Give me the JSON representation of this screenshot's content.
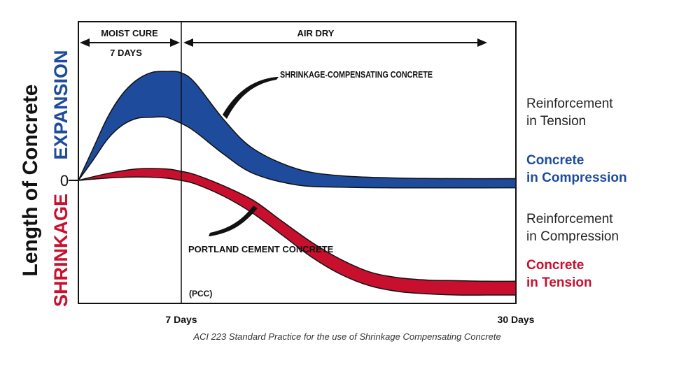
{
  "chart_data": {
    "type": "area",
    "title": "",
    "xlabel": "",
    "ylabel": "Length of Concrete",
    "y_positive_label": "EXPANSION",
    "y_negative_label": "SHRINKAGE",
    "y_zero_label": "0",
    "x_ticks": [
      "7 Days",
      "30 Days"
    ],
    "phases": [
      {
        "label": "MOIST CURE",
        "sublabel": "7 DAYS"
      },
      {
        "label": "AIR DRY"
      }
    ],
    "series": [
      {
        "name": "SHRINKAGE-COMPENSATING CONCRETE",
        "color": "#1e4b9b",
        "x_days": [
          0,
          1,
          2,
          3,
          4,
          5,
          6,
          7,
          8,
          10,
          12,
          15,
          18,
          22,
          26,
          30
        ],
        "upper": [
          0.0,
          0.55,
          1.1,
          1.5,
          1.75,
          1.88,
          1.9,
          1.88,
          1.7,
          1.05,
          0.55,
          0.2,
          0.08,
          0.04,
          0.03,
          0.03
        ],
        "lower": [
          0.0,
          0.35,
          0.72,
          0.96,
          1.08,
          1.1,
          1.1,
          1.0,
          0.85,
          0.45,
          0.12,
          -0.08,
          -0.12,
          -0.13,
          -0.13,
          -0.13
        ]
      },
      {
        "name": "PORTLAND CEMENT CONCRETE",
        "sublabel": "(PCC)",
        "color": "#c8102e",
        "x_days": [
          0,
          2,
          4,
          6,
          7,
          8,
          10,
          12,
          14,
          16,
          18,
          20,
          22,
          24,
          26,
          28,
          30
        ],
        "upper": [
          0.0,
          0.12,
          0.2,
          0.2,
          0.16,
          0.1,
          -0.1,
          -0.35,
          -0.72,
          -1.08,
          -1.38,
          -1.6,
          -1.7,
          -1.74,
          -1.75,
          -1.76,
          -1.76
        ],
        "lower": [
          0.0,
          0.04,
          0.06,
          0.04,
          0.0,
          -0.06,
          -0.28,
          -0.58,
          -0.96,
          -1.34,
          -1.64,
          -1.84,
          -1.94,
          -1.98,
          -2.0,
          -2.0,
          -2.0
        ]
      }
    ],
    "xlim": [
      0,
      30
    ],
    "ylim": [
      -2.0,
      2.2
    ],
    "right_labels": [
      {
        "text1": "Reinforcement",
        "text2": "in Tension",
        "color": "#222222"
      },
      {
        "text1": "Concrete",
        "text2": "in Compression",
        "color": "#1e4b9b"
      },
      {
        "text1": "Reinforcement",
        "text2": "in Compression",
        "color": "#222222"
      },
      {
        "text1": "Concrete",
        "text2": "in Tension",
        "color": "#c8102e"
      }
    ],
    "caption": "ACI 223 Standard Practice for the use of Shrinkage Compensating Concrete"
  }
}
